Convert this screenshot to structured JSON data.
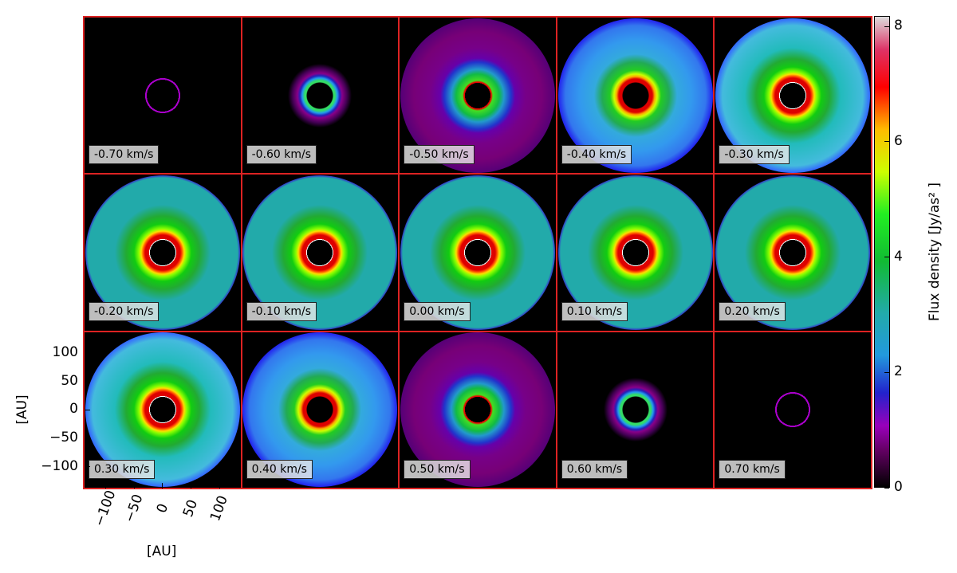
{
  "chart_data": {
    "type": "channel-maps",
    "panel_labels": [
      "-0.70 km/s",
      "-0.60 km/s",
      "-0.50 km/s",
      "-0.40 km/s",
      "-0.30 km/s",
      "-0.20 km/s",
      "-0.10 km/s",
      "0.00 km/s",
      "0.10 km/s",
      "0.20 km/s",
      "0.30 km/s",
      "0.40 km/s",
      "0.50 km/s",
      "0.60 km/s",
      "0.70 km/s"
    ],
    "xlabel": "[AU]",
    "ylabel": "[AU]",
    "xlim": [
      -137,
      137
    ],
    "ylim": [
      -137,
      137
    ],
    "xticks": [
      {
        "value": -100,
        "label": "−100"
      },
      {
        "value": -50,
        "label": "−50"
      },
      0,
      50,
      100
    ],
    "yticks": [
      100,
      50,
      0,
      {
        "value": -50,
        "label": "−50"
      },
      {
        "value": -100,
        "label": "−100"
      }
    ],
    "colorbar": {
      "label": "Flux density [Jy/as² ]",
      "ylim": [
        0,
        8.18
      ],
      "yticks": [
        0,
        2,
        4,
        6,
        8
      ]
    }
  }
}
